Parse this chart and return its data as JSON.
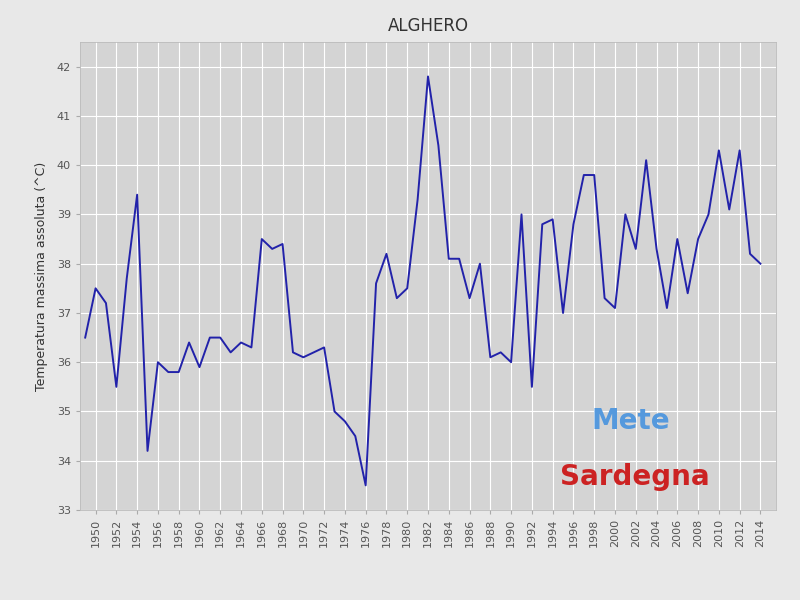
{
  "title": "ALGHERO",
  "ylabel": "Temperatura massima assoluta (^C)",
  "background_color": "#e8e8e8",
  "plot_bg_color": "#d4d4d4",
  "line_color": "#2222aa",
  "line_width": 1.4,
  "ylim": [
    33.0,
    42.5
  ],
  "yticks": [
    33,
    34,
    35,
    36,
    37,
    38,
    39,
    40,
    41,
    42
  ],
  "xlim": [
    1948.5,
    2015.5
  ],
  "xtick_start": 1950,
  "xtick_end": 2015,
  "xtick_step": 2,
  "years": [
    1949,
    1950,
    1951,
    1952,
    1953,
    1954,
    1955,
    1956,
    1957,
    1958,
    1959,
    1960,
    1961,
    1962,
    1963,
    1964,
    1965,
    1966,
    1967,
    1968,
    1969,
    1970,
    1971,
    1972,
    1973,
    1974,
    1975,
    1976,
    1977,
    1978,
    1979,
    1980,
    1981,
    1982,
    1983,
    1984,
    1985,
    1986,
    1987,
    1988,
    1989,
    1990,
    1991,
    1992,
    1993,
    1994,
    1995,
    1996,
    1997,
    1998,
    1999,
    2000,
    2001,
    2002,
    2003,
    2004,
    2005,
    2006,
    2007,
    2008,
    2009,
    2010,
    2011,
    2012,
    2013,
    2014
  ],
  "values": [
    36.5,
    37.5,
    37.2,
    35.5,
    37.7,
    39.4,
    34.2,
    36.0,
    35.8,
    35.8,
    36.4,
    35.9,
    36.5,
    36.5,
    36.2,
    36.4,
    36.3,
    38.5,
    38.3,
    38.4,
    36.2,
    36.1,
    36.2,
    36.3,
    35.0,
    34.8,
    34.5,
    33.5,
    37.6,
    38.2,
    37.3,
    37.5,
    39.3,
    41.8,
    40.4,
    38.1,
    38.1,
    37.3,
    38.0,
    36.1,
    36.2,
    36.0,
    39.0,
    35.5,
    38.8,
    38.9,
    37.0,
    38.8,
    39.8,
    39.8,
    37.3,
    37.1,
    39.0,
    38.3,
    40.1,
    38.3,
    37.1,
    38.5,
    37.4,
    38.5,
    39.0,
    40.3,
    39.1,
    40.3,
    38.2,
    38.0
  ],
  "title_fontsize": 12,
  "ylabel_fontsize": 9,
  "tick_labelsize": 8,
  "grid_color": "#ffffff",
  "grid_lw": 0.8,
  "mete_color": "#5599dd",
  "sardegna_color": "#cc2222",
  "logo_fontsize": 18
}
